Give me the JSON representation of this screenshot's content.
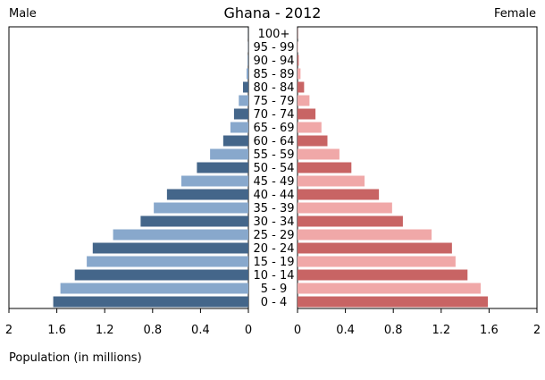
{
  "chart_data": {
    "type": "bar",
    "title": "Ghana - 2012",
    "left_label": "Male",
    "right_label": "Female",
    "xlabel": "Population (in millions)",
    "xlim": [
      0,
      2
    ],
    "ticks": [
      2,
      1.6,
      1.2,
      0.8,
      0.4,
      0
    ],
    "tick_labels_left": [
      "2",
      "1.6",
      "1.2",
      "0.8",
      "0.4",
      "0"
    ],
    "tick_labels_right": [
      "0",
      "0.4",
      "0.8",
      "1.2",
      "1.6",
      "2"
    ],
    "categories": [
      "100+",
      "95 - 99",
      "90 - 94",
      "85 - 89",
      "80 - 84",
      "75 - 79",
      "70 - 74",
      "65 - 69",
      "60 - 64",
      "55 - 59",
      "50 - 54",
      "45 - 49",
      "40 - 44",
      "35 - 39",
      "30 - 34",
      "25 - 29",
      "20 - 24",
      "15 - 19",
      "10 - 14",
      "5 - 9",
      "0 - 4"
    ],
    "series": [
      {
        "name": "Male",
        "colors": [
          "#44668a",
          "#88a8cc"
        ],
        "values": [
          0.001,
          0.002,
          0.005,
          0.015,
          0.045,
          0.08,
          0.12,
          0.15,
          0.21,
          0.32,
          0.43,
          0.56,
          0.68,
          0.79,
          0.9,
          1.13,
          1.3,
          1.35,
          1.45,
          1.57,
          1.63
        ]
      },
      {
        "name": "Female",
        "colors": [
          "#c86464",
          "#f0a8a8"
        ],
        "values": [
          0.002,
          0.004,
          0.01,
          0.025,
          0.055,
          0.1,
          0.15,
          0.2,
          0.25,
          0.35,
          0.45,
          0.56,
          0.68,
          0.79,
          0.88,
          1.12,
          1.29,
          1.32,
          1.42,
          1.53,
          1.59
        ]
      }
    ]
  }
}
